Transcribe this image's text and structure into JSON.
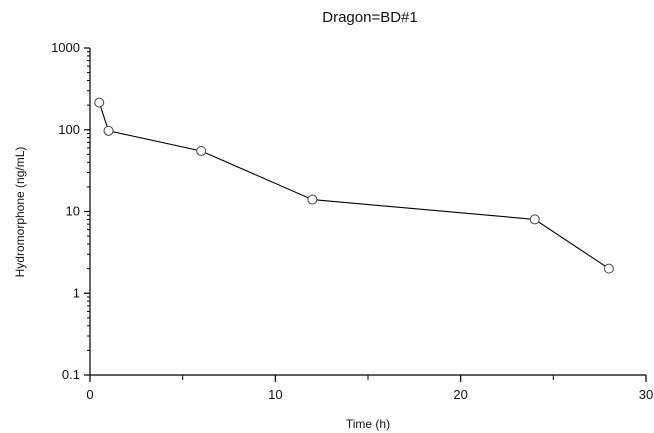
{
  "chart_data": {
    "type": "scatter",
    "title": "Dragon=BD#1",
    "xlabel": "Time (h)",
    "ylabel": "Hydromorphone (ng/mL)",
    "xlim": [
      0,
      30
    ],
    "ylim": [
      0.1,
      1000
    ],
    "yscale": "log",
    "grid": false,
    "x_ticks": [
      "0",
      "10",
      "20",
      "30"
    ],
    "y_ticks": [
      "0.1",
      "1",
      "10",
      "100",
      "1000"
    ],
    "series": [
      {
        "x": [
          0.5,
          1,
          6,
          12,
          24,
          28
        ],
        "y": [
          215,
          97,
          55,
          14,
          8,
          2
        ],
        "color": "#000000"
      }
    ]
  }
}
